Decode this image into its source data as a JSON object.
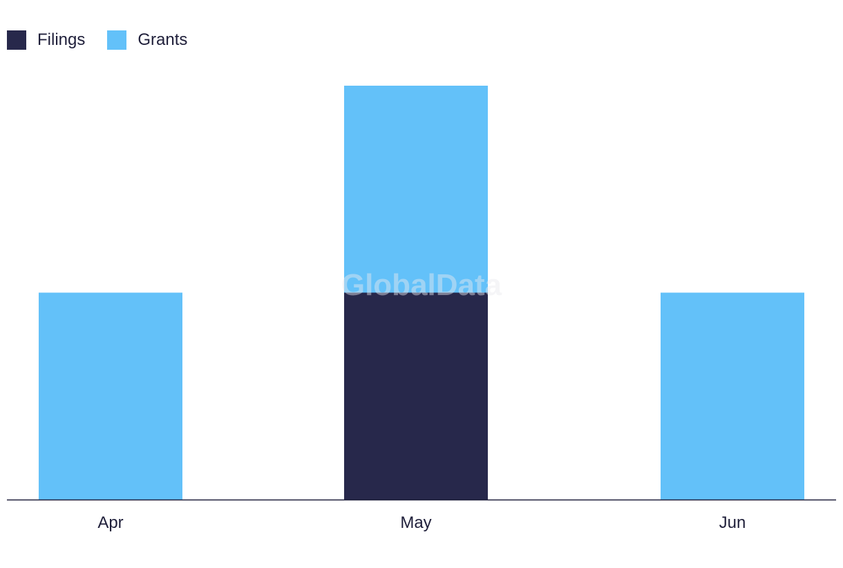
{
  "chart_data": {
    "type": "bar",
    "stacked": true,
    "categories": [
      "Apr",
      "May",
      "Jun"
    ],
    "series": [
      {
        "name": "Filings",
        "values": [
          0,
          1,
          0
        ],
        "color": "#27284b"
      },
      {
        "name": "Grants",
        "values": [
          1,
          1,
          1
        ],
        "color": "#63c1f9"
      }
    ],
    "ylim": [
      0,
      2
    ],
    "grid": false,
    "legend_position": "top-left",
    "watermark": "GlobalData"
  }
}
